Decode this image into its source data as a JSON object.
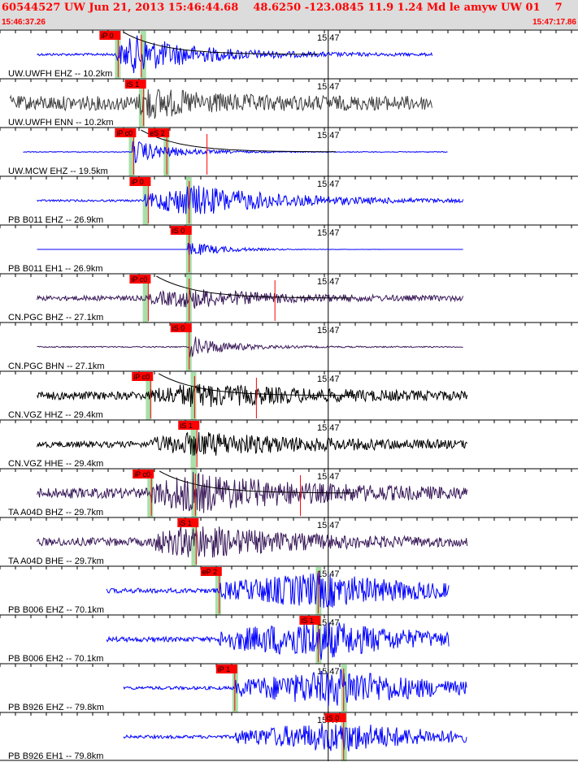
{
  "header": {
    "title": "60544527 UW Jun 21, 2013 15:46:44.68    48.6250 -123.0845 11.9 1.24 Md le amyw UW 01    7",
    "time_start": "15:46:37.26",
    "time_end": "15:47:17.86"
  },
  "colors": {
    "header_bg": "#dcdcdc",
    "title": "#ff0000",
    "pick_box": "#ff0000",
    "pick_highlight": "#a9dfa9",
    "gridline": "#000000",
    "blue_trace": "#0000ff",
    "gray_trace": "#404040",
    "purple_trace": "#3a1a5a",
    "black_trace": "#000000"
  },
  "chart_data": {
    "type": "line",
    "title": "60544527 UW Jun 21, 2013 15:46:44.68    48.6250 -123.0845 11.9 1.24 Md le amyw UW 01    7",
    "x_range": [
      "15:46:37.26",
      "15:47:17.86"
    ],
    "x_tick_label": "15:47",
    "x_minor_ticks_seconds": 2,
    "grid": true,
    "series": [
      {
        "name": "UW.UWFH EHZ -- 10.2km",
        "color": "#0000ff",
        "style": "blue",
        "trace_start": 3.8,
        "trace_end": 55,
        "onset": 14,
        "peak_t": 16.5,
        "amp": 0.9,
        "noise": 0.06,
        "decay": 9,
        "picks": [
          {
            "label": "iP 0",
            "time": 14.3,
            "highlight": 14.2
          },
          {
            "label": "",
            "time": 17.3,
            "highlight": 17.5
          }
        ],
        "spike": null,
        "moveout": true
      },
      {
        "name": "UW.UWFH ENN -- 10.2km",
        "color": "#404040",
        "style": "gray",
        "trace_start": 0.3,
        "trace_end": 55,
        "onset": 17,
        "peak_t": 17.8,
        "amp": 0.55,
        "noise": 0.35,
        "decay": 7,
        "picks": [
          {
            "label": "iS 1",
            "time": 17.6,
            "highlight": 17.3
          }
        ],
        "spike": null,
        "moveout": false
      },
      {
        "name": "UW.MCW EHZ -- 19.5km",
        "color": "#0000ff",
        "style": "blue",
        "trace_start": 2,
        "trace_end": 57,
        "onset": 16.2,
        "peak_t": 16.5,
        "amp": 0.55,
        "noise": 0.02,
        "decay": 5,
        "picks": [
          {
            "label": "iP c0",
            "time": 16.3,
            "highlight": 16.0
          },
          {
            "label": "eS 2",
            "time": 20.6,
            "highlight": 20.5
          }
        ],
        "spike": 25.8,
        "moveout": true
      },
      {
        "name": "PB B011 EHZ -- 26.9km",
        "color": "#0000ff",
        "style": "blue",
        "trace_start": 3.8,
        "trace_end": 59,
        "onset": 17.8,
        "peak_t": 24,
        "amp": 0.75,
        "noise": 0.05,
        "decay": 12,
        "picks": [
          {
            "label": "iP 0",
            "time": 18.2,
            "highlight": 17.8
          },
          {
            "label": "",
            "time": 23.5,
            "highlight": 23.4
          }
        ],
        "spike": null,
        "moveout": false
      },
      {
        "name": "PB B011 EH1 -- 26.9km",
        "color": "#0000ff",
        "style": "blue",
        "trace_start": 3.8,
        "trace_end": 59,
        "onset": 23.3,
        "peak_t": 23.8,
        "amp": 0.35,
        "noise": 0.0,
        "decay": 5,
        "picks": [
          {
            "label": "iS 0",
            "time": 23.5,
            "highlight": 23.4
          }
        ],
        "spike": null,
        "moveout": false
      },
      {
        "name": "CN.PGC BHZ -- 27.1km",
        "color": "#3a1a5a",
        "style": "purple",
        "trace_start": 3.8,
        "trace_end": 59,
        "onset": 18.2,
        "peak_t": 24,
        "amp": 0.4,
        "noise": 0.12,
        "decay": 10,
        "picks": [
          {
            "label": "iP c0",
            "time": 18.2,
            "highlight": 17.8
          },
          {
            "label": "",
            "time": 23.5,
            "highlight": 23.4
          }
        ],
        "spike": 34.6,
        "moveout": true
      },
      {
        "name": "CN.PGC BHN -- 27.1km",
        "color": "#3a1a5a",
        "style": "purple",
        "trace_start": 3.8,
        "trace_end": 59,
        "onset": 23.5,
        "peak_t": 23.8,
        "amp": 0.5,
        "noise": 0.03,
        "decay": 5,
        "picks": [
          {
            "label": "iS 0",
            "time": 23.5,
            "highlight": 23.4
          }
        ],
        "spike": null,
        "moveout": false
      },
      {
        "name": "CN.VGZ HHZ -- 29.4km",
        "color": "#000000",
        "style": "black",
        "trace_start": 3.8,
        "trace_end": 59.5,
        "onset": 18.5,
        "peak_t": 24.2,
        "amp": 0.45,
        "noise": 0.2,
        "decay": 14,
        "picks": [
          {
            "label": "iP c0",
            "time": 18.5,
            "highlight": 18.2
          },
          {
            "label": "",
            "time": 24.2,
            "highlight": 24.0
          }
        ],
        "spike": 32.2,
        "moveout": true
      },
      {
        "name": "CN.VGZ HHE -- 29.4km",
        "color": "#000000",
        "style": "black",
        "trace_start": 3.8,
        "trace_end": 59.5,
        "onset": 18.5,
        "peak_t": 24.8,
        "amp": 0.5,
        "noise": 0.15,
        "decay": 16,
        "picks": [
          {
            "label": "iS 1",
            "time": 24.5,
            "highlight": 24.0
          }
        ],
        "spike": null,
        "moveout": false
      },
      {
        "name": "TA A04D BHZ -- 29.7km",
        "color": "#3a1a5a",
        "style": "purple",
        "trace_start": 3.8,
        "trace_end": 59.5,
        "onset": 18.6,
        "peak_t": 24,
        "amp": 0.8,
        "noise": 0.25,
        "decay": 14,
        "picks": [
          {
            "label": "iP c0",
            "time": 18.6,
            "highlight": 18.4
          },
          {
            "label": "",
            "time": 24.3,
            "highlight": 24.1
          }
        ],
        "spike": 37.9,
        "moveout": true
      },
      {
        "name": "TA A04D BHE -- 29.7km",
        "color": "#3a1a5a",
        "style": "purple",
        "trace_start": 3.8,
        "trace_end": 59.5,
        "onset": 18.6,
        "peak_t": 24.6,
        "amp": 0.7,
        "noise": 0.2,
        "decay": 12,
        "picks": [
          {
            "label": "iS 1",
            "time": 24.4,
            "highlight": 24.1
          }
        ],
        "spike": null,
        "moveout": false
      },
      {
        "name": "PB B006 EHZ -- 70.1km",
        "color": "#0000ff",
        "style": "blue",
        "trace_start": 12.8,
        "trace_end": 57.2,
        "onset": 27.4,
        "peak_t": 40.5,
        "amp": 0.8,
        "noise": 0.12,
        "decay": 14,
        "picks": [
          {
            "label": "eP 2",
            "time": 27.4,
            "highlight": 27.2
          },
          {
            "label": "",
            "time": 40.2,
            "highlight": 40.2
          }
        ],
        "spike": null,
        "moveout": false
      },
      {
        "name": "PB B006 EH2 -- 70.1km",
        "color": "#0000ff",
        "style": "blue",
        "trace_start": 12.8,
        "trace_end": 57.2,
        "onset": 27.4,
        "peak_t": 40.6,
        "amp": 0.9,
        "noise": 0.12,
        "decay": 12,
        "picks": [
          {
            "label": "iS 1",
            "time": 40.2,
            "highlight": 40.2
          }
        ],
        "spike": null,
        "moveout": false
      },
      {
        "name": "PB B926 EHZ -- 79.8km",
        "color": "#0000ff",
        "style": "blue",
        "trace_start": 15,
        "trace_end": 59.5,
        "onset": 29.5,
        "peak_t": 43.8,
        "amp": 0.9,
        "noise": 0.08,
        "decay": 12,
        "picks": [
          {
            "label": "iP 1",
            "time": 29.4,
            "highlight": 29.4
          },
          {
            "label": "",
            "time": 43.5,
            "highlight": 43.5
          }
        ],
        "spike": null,
        "moveout": false
      },
      {
        "name": "PB B926 EH1 -- 79.8km",
        "color": "#0000ff",
        "style": "blue",
        "trace_start": 15,
        "trace_end": 59.5,
        "onset": 29.5,
        "peak_t": 43.8,
        "amp": 0.7,
        "noise": 0.08,
        "decay": 12,
        "picks": [
          {
            "label": "iS 0",
            "time": 43.5,
            "highlight": 43.5
          }
        ],
        "spike": null,
        "moveout": false
      }
    ]
  }
}
